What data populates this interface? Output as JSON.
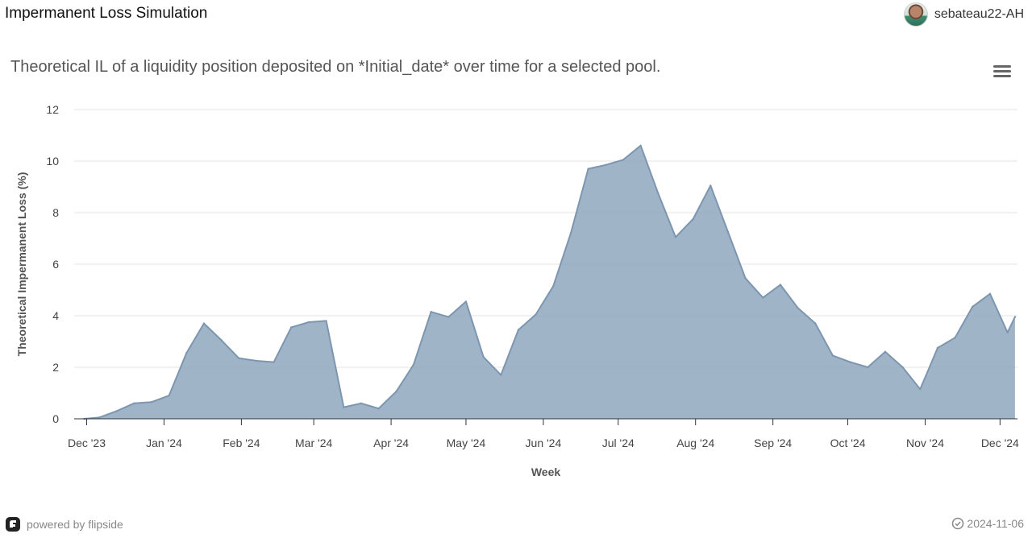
{
  "header": {
    "title": "Impermanent Loss Simulation",
    "username": "sebateau22-AH"
  },
  "chart_data": {
    "type": "area",
    "title": "Theoretical IL of a liquidity position deposited on *Initial_date* over time for a selected pool.",
    "xlabel": "Week",
    "ylabel": "Theoretical Impermanent Loss (%)",
    "x_axis_type": "datetime",
    "xlim": [
      "2023-11-26",
      "2024-12-08"
    ],
    "ylim": [
      0,
      12
    ],
    "y_ticks": [
      0,
      2,
      4,
      6,
      8,
      10,
      12
    ],
    "x_ticks": [
      {
        "date": "2023-12-01",
        "label": "Dec '23"
      },
      {
        "date": "2024-01-01",
        "label": "Jan '24"
      },
      {
        "date": "2024-02-01",
        "label": "Feb '24"
      },
      {
        "date": "2024-03-01",
        "label": "Mar '24"
      },
      {
        "date": "2024-04-01",
        "label": "Apr '24"
      },
      {
        "date": "2024-05-01",
        "label": "May '24"
      },
      {
        "date": "2024-06-01",
        "label": "Jun '24"
      },
      {
        "date": "2024-07-01",
        "label": "Jul '24"
      },
      {
        "date": "2024-08-01",
        "label": "Aug '24"
      },
      {
        "date": "2024-09-01",
        "label": "Sep '24"
      },
      {
        "date": "2024-10-01",
        "label": "Oct '24"
      },
      {
        "date": "2024-11-01",
        "label": "Nov '24"
      },
      {
        "date": "2024-12-01",
        "label": "Dec '24"
      }
    ],
    "grid": true,
    "legend": "none",
    "color": "#8ba3bb",
    "series": [
      {
        "points": [
          {
            "x": "2023-11-30",
            "y": 0.0
          },
          {
            "x": "2023-12-06",
            "y": 0.05
          },
          {
            "x": "2023-12-13",
            "y": 0.3
          },
          {
            "x": "2023-12-20",
            "y": 0.6
          },
          {
            "x": "2023-12-27",
            "y": 0.65
          },
          {
            "x": "2024-01-03",
            "y": 0.9
          },
          {
            "x": "2024-01-10",
            "y": 2.55
          },
          {
            "x": "2024-01-17",
            "y": 3.7
          },
          {
            "x": "2024-01-24",
            "y": 3.05
          },
          {
            "x": "2024-01-31",
            "y": 2.35
          },
          {
            "x": "2024-02-07",
            "y": 2.25
          },
          {
            "x": "2024-02-14",
            "y": 2.2
          },
          {
            "x": "2024-02-21",
            "y": 3.55
          },
          {
            "x": "2024-02-28",
            "y": 3.75
          },
          {
            "x": "2024-03-06",
            "y": 3.8
          },
          {
            "x": "2024-03-13",
            "y": 0.45
          },
          {
            "x": "2024-03-20",
            "y": 0.6
          },
          {
            "x": "2024-03-27",
            "y": 0.4
          },
          {
            "x": "2024-04-03",
            "y": 1.05
          },
          {
            "x": "2024-04-10",
            "y": 2.1
          },
          {
            "x": "2024-04-17",
            "y": 4.15
          },
          {
            "x": "2024-04-24",
            "y": 3.95
          },
          {
            "x": "2024-05-01",
            "y": 4.55
          },
          {
            "x": "2024-05-08",
            "y": 2.4
          },
          {
            "x": "2024-05-15",
            "y": 1.7
          },
          {
            "x": "2024-05-22",
            "y": 3.45
          },
          {
            "x": "2024-05-29",
            "y": 4.05
          },
          {
            "x": "2024-06-05",
            "y": 5.15
          },
          {
            "x": "2024-06-12",
            "y": 7.2
          },
          {
            "x": "2024-06-19",
            "y": 9.7
          },
          {
            "x": "2024-06-26",
            "y": 9.85
          },
          {
            "x": "2024-07-03",
            "y": 10.05
          },
          {
            "x": "2024-07-10",
            "y": 10.6
          },
          {
            "x": "2024-07-17",
            "y": 8.75
          },
          {
            "x": "2024-07-24",
            "y": 7.05
          },
          {
            "x": "2024-07-31",
            "y": 7.75
          },
          {
            "x": "2024-08-07",
            "y": 9.05
          },
          {
            "x": "2024-08-14",
            "y": 7.25
          },
          {
            "x": "2024-08-21",
            "y": 5.45
          },
          {
            "x": "2024-08-28",
            "y": 4.7
          },
          {
            "x": "2024-09-04",
            "y": 5.2
          },
          {
            "x": "2024-09-11",
            "y": 4.3
          },
          {
            "x": "2024-09-18",
            "y": 3.7
          },
          {
            "x": "2024-09-25",
            "y": 2.45
          },
          {
            "x": "2024-10-02",
            "y": 2.2
          },
          {
            "x": "2024-10-09",
            "y": 2.0
          },
          {
            "x": "2024-10-16",
            "y": 2.6
          },
          {
            "x": "2024-10-23",
            "y": 2.0
          },
          {
            "x": "2024-10-30",
            "y": 1.15
          },
          {
            "x": "2024-11-06",
            "y": 2.75
          },
          {
            "x": "2024-11-13",
            "y": 3.15
          },
          {
            "x": "2024-11-20",
            "y": 4.35
          },
          {
            "x": "2024-11-27",
            "y": 4.85
          },
          {
            "x": "2024-12-04",
            "y": 3.35
          },
          {
            "x": "2024-12-07",
            "y": 3.95
          }
        ]
      }
    ]
  },
  "footer": {
    "brand": "powered by flipside",
    "date": "2024-11-06"
  },
  "icons": {
    "menu": "menu-icon",
    "avatar": "avatar",
    "brand_logo": "flipside-logo-icon",
    "date_check": "check-circle-icon"
  }
}
